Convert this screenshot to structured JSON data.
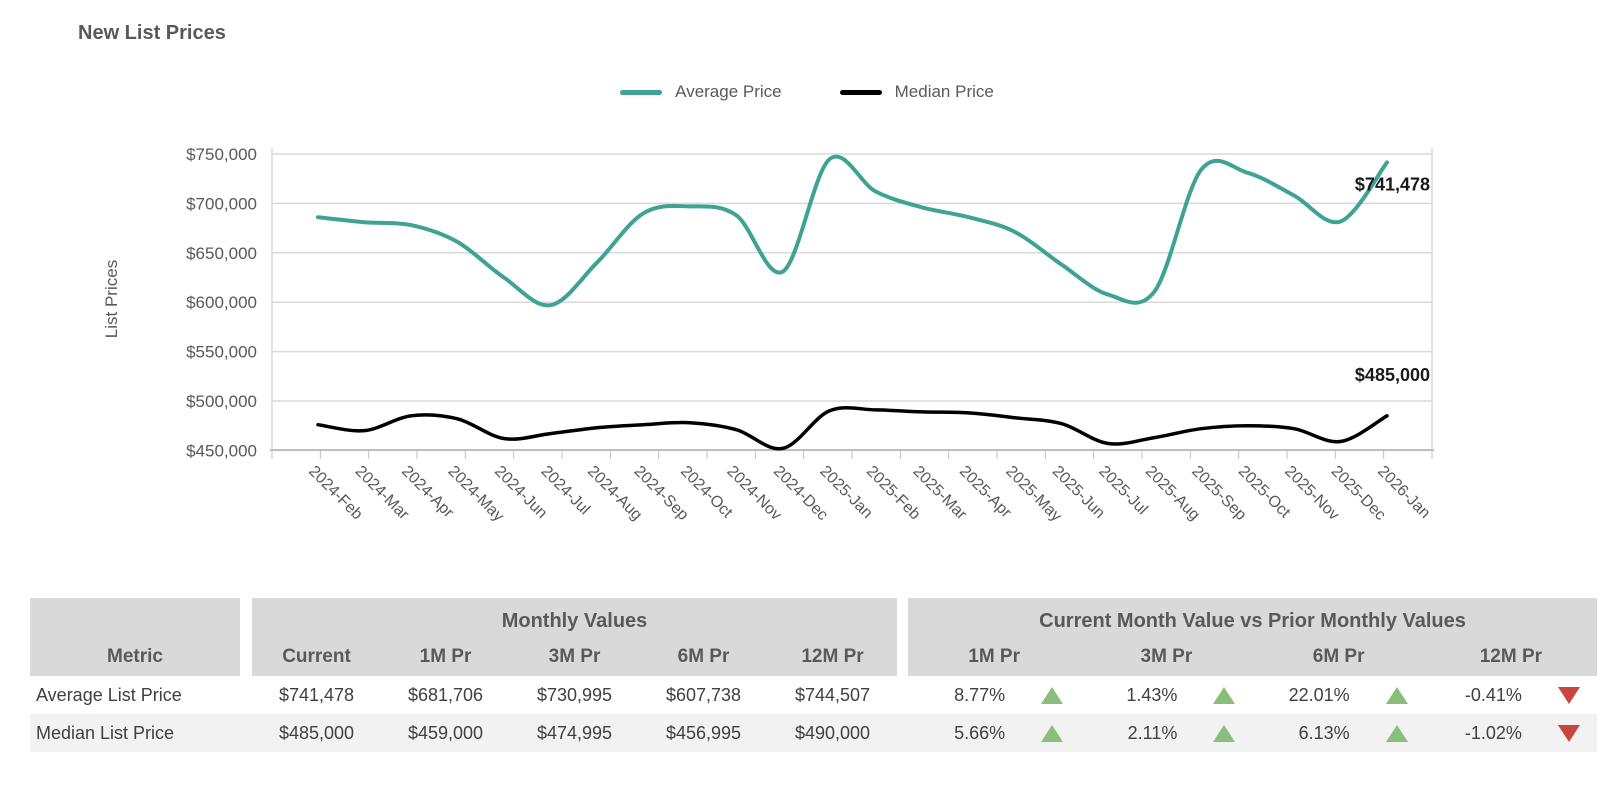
{
  "title": "New List Prices",
  "chart_data": {
    "type": "line",
    "title": "New List Prices",
    "ylabel": "List Prices",
    "grid": true,
    "legend_position": "top",
    "ylim": [
      450000,
      750000
    ],
    "y_ticks": [
      {
        "value": 750000,
        "label": "$750,000"
      },
      {
        "value": 700000,
        "label": "$700,000"
      },
      {
        "value": 650000,
        "label": "$650,000"
      },
      {
        "value": 600000,
        "label": "$600,000"
      },
      {
        "value": 550000,
        "label": "$550,000"
      },
      {
        "value": 500000,
        "label": "$500,000"
      },
      {
        "value": 450000,
        "label": "$450,000"
      }
    ],
    "x_categories": [
      "2024-Feb",
      "2024-Mar",
      "2024-Apr",
      "2024-May",
      "2024-Jun",
      "2024-Jul",
      "2024-Aug",
      "2024-Sep",
      "2024-Oct",
      "2024-Nov",
      "2024-Dec",
      "2025-Jan",
      "2025-Feb",
      "2025-Mar",
      "2025-Apr",
      "2025-May",
      "2025-Jun",
      "2025-Jul",
      "2025-Aug",
      "2025-Sep",
      "2025-Oct",
      "2025-Nov",
      "2025-Dec",
      "2026-Jan"
    ],
    "series": [
      {
        "name": "Average Price",
        "color": "#3EA294",
        "end_label": "$741,478",
        "values": [
          686000,
          681000,
          678000,
          661000,
          625000,
          597000,
          640000,
          690000,
          697000,
          688000,
          631000,
          744507,
          712000,
          696000,
          686000,
          671000,
          638000,
          607738,
          611000,
          734000,
          730995,
          708000,
          681706,
          741478
        ]
      },
      {
        "name": "Median Price",
        "color": "#000000",
        "end_label": "$485,000",
        "values": [
          476000,
          470000,
          485000,
          482000,
          462000,
          467000,
          473000,
          476000,
          478000,
          471000,
          452000,
          490000,
          491000,
          489000,
          488000,
          483000,
          477000,
          456995,
          463000,
          472000,
          474995,
          472000,
          459000,
          485000
        ]
      }
    ]
  },
  "table": {
    "metric_header": "Metric",
    "group1_title": "Monthly Values",
    "group2_title": "Current Month Value vs Prior Monthly Values",
    "value_columns": [
      "Current",
      "1M Pr",
      "3M Pr",
      "6M Pr",
      "12M Pr"
    ],
    "compare_columns": [
      "1M Pr",
      "3M Pr",
      "6M Pr",
      "12M Pr"
    ],
    "colors": {
      "up": "#8CBE7B",
      "down": "#C8463C"
    },
    "rows": [
      {
        "metric": "Average List Price",
        "values": [
          "$741,478",
          "$681,706",
          "$730,995",
          "$607,738",
          "$744,507"
        ],
        "changes": [
          {
            "value": "8.77%",
            "direction": "up"
          },
          {
            "value": "1.43%",
            "direction": "up"
          },
          {
            "value": "22.01%",
            "direction": "up"
          },
          {
            "value": "-0.41%",
            "direction": "down"
          }
        ]
      },
      {
        "metric": "Median List Price",
        "values": [
          "$485,000",
          "$459,000",
          "$474,995",
          "$456,995",
          "$490,000"
        ],
        "changes": [
          {
            "value": "5.66%",
            "direction": "up"
          },
          {
            "value": "2.11%",
            "direction": "up"
          },
          {
            "value": "6.13%",
            "direction": "up"
          },
          {
            "value": "-1.02%",
            "direction": "down"
          }
        ]
      }
    ]
  }
}
